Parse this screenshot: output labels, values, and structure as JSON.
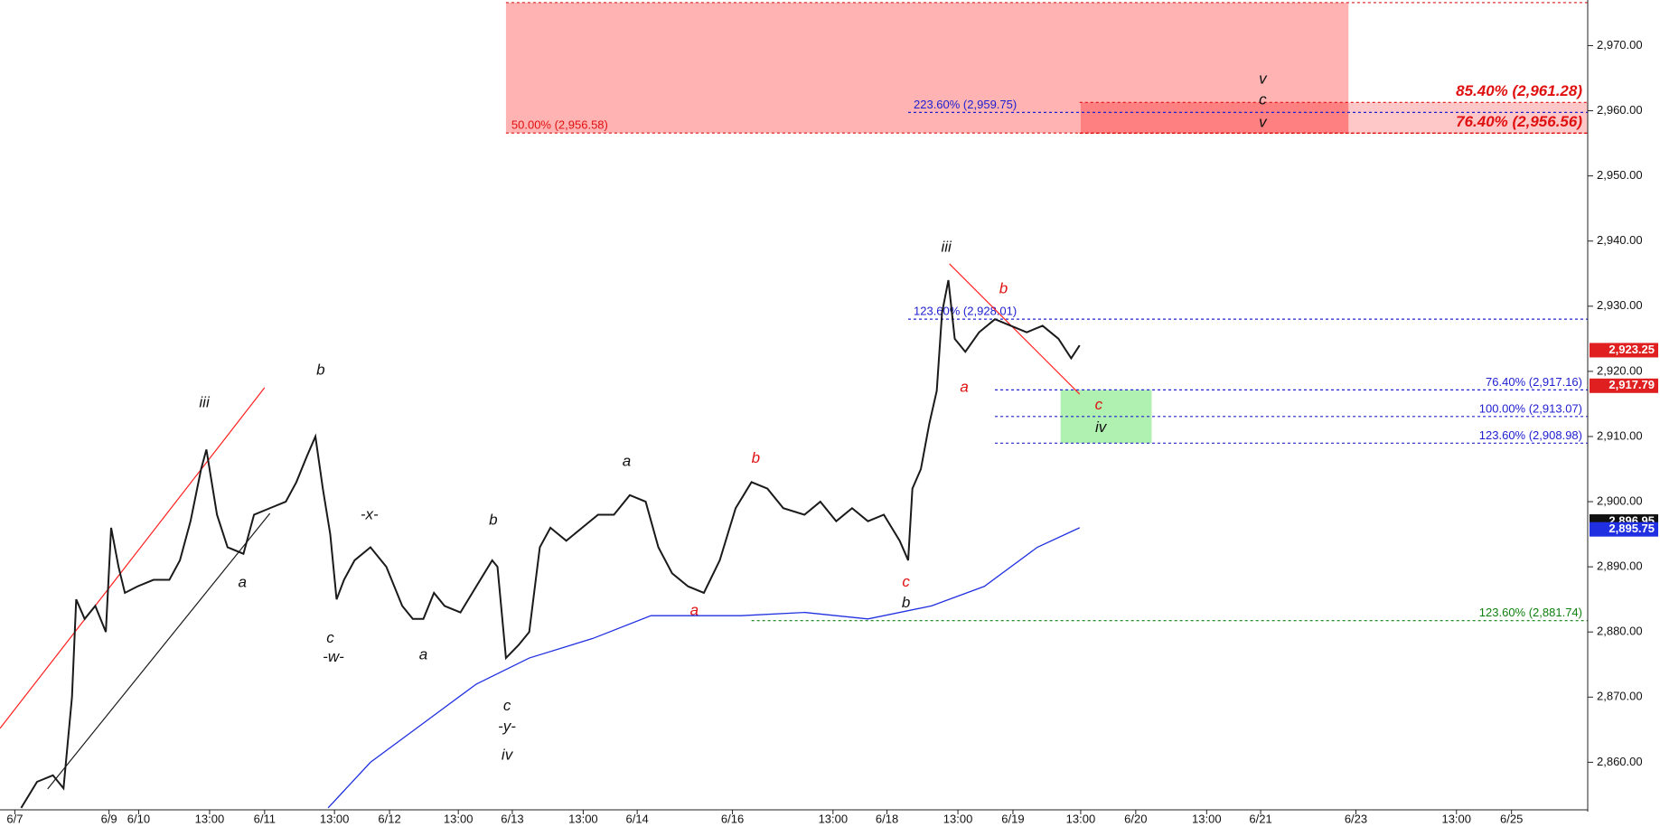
{
  "chart_data": {
    "type": "line",
    "xlim": [
      0,
      1500
    ],
    "ylim": [
      2852.7,
      2977
    ],
    "xticks": [
      {
        "value": 14,
        "label": "6/7"
      },
      {
        "value": 103,
        "label": "6/9"
      },
      {
        "value": 131,
        "label": "6/10"
      },
      {
        "value": 198,
        "label": "13:00"
      },
      {
        "value": 250,
        "label": "6/11"
      },
      {
        "value": 316,
        "label": "13:00"
      },
      {
        "value": 368,
        "label": "6/12"
      },
      {
        "value": 433,
        "label": "13:00"
      },
      {
        "value": 484,
        "label": "6/13"
      },
      {
        "value": 551,
        "label": "13:00"
      },
      {
        "value": 602,
        "label": "6/14"
      },
      {
        "value": 692,
        "label": "6/16"
      },
      {
        "value": 787,
        "label": "13:00"
      },
      {
        "value": 838,
        "label": "6/18"
      },
      {
        "value": 905,
        "label": "13:00"
      },
      {
        "value": 957,
        "label": "6/19"
      },
      {
        "value": 1021,
        "label": "13:00"
      },
      {
        "value": 1073,
        "label": "6/20"
      },
      {
        "value": 1140,
        "label": "13:00"
      },
      {
        "value": 1191,
        "label": "6/21"
      },
      {
        "value": 1281,
        "label": "6/23"
      },
      {
        "value": 1376,
        "label": "13:00"
      },
      {
        "value": 1428,
        "label": "6/25"
      }
    ],
    "yticks": [
      {
        "value": 2860,
        "label": "2,860.00"
      },
      {
        "value": 2870,
        "label": "2,870.00"
      },
      {
        "value": 2880,
        "label": "2,880.00"
      },
      {
        "value": 2890,
        "label": "2,890.00"
      },
      {
        "value": 2900,
        "label": "2,900.00"
      },
      {
        "value": 2910,
        "label": "2,910.00"
      },
      {
        "value": 2920,
        "label": "2,920.00"
      },
      {
        "value": 2930,
        "label": "2,930.00"
      },
      {
        "value": 2940,
        "label": "2,940.00"
      },
      {
        "value": 2950,
        "label": "2,950.00"
      },
      {
        "value": 2960,
        "label": "2,960.00"
      },
      {
        "value": 2970,
        "label": "2,970.00"
      }
    ],
    "series": [
      {
        "color": "#1a1a1a",
        "x": [
          20,
          35,
          50,
          60,
          68,
          72,
          80,
          90,
          100,
          105,
          112,
          118,
          130,
          145,
          160,
          170,
          180,
          190,
          195,
          205,
          215,
          230,
          240,
          255,
          270,
          280,
          290,
          298,
          305,
          312,
          318,
          325,
          335,
          350,
          365,
          380,
          390,
          400,
          410,
          420,
          435,
          450,
          465,
          470,
          478,
          490,
          500,
          510,
          520,
          535,
          550,
          565,
          580,
          595,
          610,
          622,
          635,
          650,
          665,
          680,
          695,
          710,
          725,
          740,
          760,
          775,
          790,
          805,
          820,
          835,
          850,
          858,
          862,
          870,
          878,
          885,
          890,
          896,
          902,
          912,
          925,
          940,
          955,
          970,
          985,
          1000,
          1012,
          1020
        ],
        "values": [
          2853,
          2857,
          2858,
          2856,
          2870,
          2885,
          2882,
          2884,
          2880,
          2896,
          2890,
          2886,
          2887,
          2888,
          2888,
          2891,
          2897,
          2905,
          2908,
          2898,
          2893,
          2892,
          2898,
          2899,
          2900,
          2903,
          2907,
          2910,
          2902,
          2895,
          2885,
          2888,
          2891,
          2893,
          2890,
          2884,
          2882,
          2882,
          2886,
          2884,
          2883,
          2887,
          2891,
          2890,
          2876,
          2878,
          2880,
          2893,
          2896,
          2894,
          2896,
          2898,
          2898,
          2901,
          2900,
          2893,
          2889,
          2887,
          2886,
          2891,
          2899,
          2903,
          2902,
          2899,
          2898,
          2900,
          2897,
          2899,
          2897,
          2898,
          2894,
          2891,
          2902,
          2905,
          2912,
          2917,
          2929,
          2934,
          2925,
          2923,
          2926,
          2928,
          2927,
          2926,
          2927,
          2925,
          2922,
          2924
        ]
      },
      {
        "color": "#2030e0",
        "x": [
          310,
          350,
          400,
          450,
          500,
          560,
          615,
          700,
          760,
          820,
          880,
          930,
          980,
          1020
        ],
        "values": [
          2853,
          2860,
          2866,
          2872,
          2876,
          2879,
          2882.5,
          2882.5,
          2883,
          2882,
          2884,
          2887,
          2893,
          2896
        ]
      }
    ],
    "zones": [
      {
        "x": [
          478,
          1274
        ],
        "y": [
          2956.58,
          2976.6
        ],
        "color": "#ffb3b3"
      },
      {
        "x": [
          1274,
          1500
        ],
        "y": [
          2956.56,
          2961.28
        ],
        "color": "#ffc8c8"
      },
      {
        "x": [
          1021,
          1274
        ],
        "y": [
          2956.56,
          2961.28
        ],
        "color": "#ff8080"
      },
      {
        "x": [
          1002,
          1088
        ],
        "y": [
          2908.98,
          2917.16
        ],
        "color": "#b0f0b0"
      }
    ],
    "levels": [
      {
        "value": 2976.6,
        "x0": 478,
        "color": "#e03030"
      },
      {
        "value": 2959.75,
        "x0": 858,
        "color": "#2020d0",
        "label": "223.60% (2,959.75)",
        "side": "left"
      },
      {
        "value": 2956.58,
        "x0": 478,
        "color": "#e01010",
        "label": "50.00% (2,956.58)",
        "side": "left"
      },
      {
        "value": 2961.28,
        "x0": 1020,
        "color": "#e01010",
        "label": "85.40% (2,961.28)",
        "side": "right",
        "big": true
      },
      {
        "value": 2956.56,
        "x0": 1020,
        "color": "#e01010",
        "label": "76.40% (2,956.56)",
        "side": "right",
        "big": true
      },
      {
        "value": 2928.01,
        "x0": 858,
        "color": "#2020d0",
        "label": "123.60% (2,928.01)",
        "side": "left"
      },
      {
        "value": 2917.16,
        "x0": 940,
        "color": "#2020d0",
        "label": "76.40% (2,917.16)",
        "side": "right"
      },
      {
        "value": 2913.07,
        "x0": 940,
        "color": "#2020d0",
        "label": "100.00% (2,913.07)",
        "side": "right"
      },
      {
        "value": 2908.98,
        "x0": 940,
        "color": "#2020d0",
        "label": "123.60% (2,908.98)",
        "side": "right"
      },
      {
        "value": 2881.74,
        "x0": 710,
        "color": "#108010",
        "label": "123.60% (2,881.74)",
        "side": "right"
      }
    ],
    "trendlines": [
      {
        "x": [
          0,
          250
        ],
        "y": [
          2865.2,
          2917.5
        ],
        "color": "#ff2020"
      },
      {
        "x": [
          45,
          255
        ],
        "y": [
          2855.9,
          2898.2
        ],
        "color": "#1a1a1a"
      },
      {
        "x": [
          897,
          1020
        ],
        "y": [
          2936.5,
          2916.5
        ],
        "color": "#ff2020"
      }
    ],
    "price_tags": [
      {
        "value": 2923.25,
        "label": "2,923.25",
        "color": "#e02020"
      },
      {
        "value": 2917.79,
        "label": "2,917.79",
        "color": "#e02020"
      },
      {
        "value": 2896.95,
        "label": "2,896.95",
        "color": "#111111"
      },
      {
        "value": 2895.75,
        "label": "2,895.75",
        "color": "#2030e0"
      }
    ],
    "waves": [
      {
        "text": "iii",
        "x": 193,
        "y": 2915.1,
        "color": "#111"
      },
      {
        "text": "a",
        "x": 229,
        "y": 2887.5,
        "color": "#111"
      },
      {
        "text": "b",
        "x": 303,
        "y": 2920.1,
        "color": "#111"
      },
      {
        "text": "c",
        "x": 312,
        "y": 2879.0,
        "color": "#111"
      },
      {
        "text": "-w-",
        "x": 315,
        "y": 2876.1,
        "color": "#111"
      },
      {
        "text": "-x-",
        "x": 349,
        "y": 2897.9,
        "color": "#111"
      },
      {
        "text": "a",
        "x": 400,
        "y": 2876.4,
        "color": "#111"
      },
      {
        "text": "b",
        "x": 466,
        "y": 2897.1,
        "color": "#111"
      },
      {
        "text": "c",
        "x": 479,
        "y": 2868.6,
        "color": "#111"
      },
      {
        "text": "-y-",
        "x": 479,
        "y": 2865.4,
        "color": "#111"
      },
      {
        "text": "iv",
        "x": 479,
        "y": 2861.0,
        "color": "#111"
      },
      {
        "text": "a",
        "x": 592,
        "y": 2906.1,
        "color": "#111"
      },
      {
        "text": "b",
        "x": 714,
        "y": 2906.6,
        "color": "#e01010"
      },
      {
        "text": "a",
        "x": 656,
        "y": 2883.2,
        "color": "#e01010"
      },
      {
        "text": "c",
        "x": 856,
        "y": 2887.6,
        "color": "#e01010"
      },
      {
        "text": "b",
        "x": 856,
        "y": 2884.4,
        "color": "#111"
      },
      {
        "text": "iii",
        "x": 894,
        "y": 2939.0,
        "color": "#111"
      },
      {
        "text": "a",
        "x": 911,
        "y": 2917.5,
        "color": "#e01010"
      },
      {
        "text": "b",
        "x": 948,
        "y": 2932.6,
        "color": "#e01010"
      },
      {
        "text": "c",
        "x": 1038,
        "y": 2914.8,
        "color": "#e01010"
      },
      {
        "text": "iv",
        "x": 1040,
        "y": 2911.3,
        "color": "#111"
      },
      {
        "text": "v",
        "x": 1193,
        "y": 2964.8,
        "color": "#111"
      },
      {
        "text": "c",
        "x": 1193,
        "y": 2961.6,
        "color": "#111"
      },
      {
        "text": "v",
        "x": 1193,
        "y": 2958.1,
        "color": "#111"
      }
    ]
  }
}
